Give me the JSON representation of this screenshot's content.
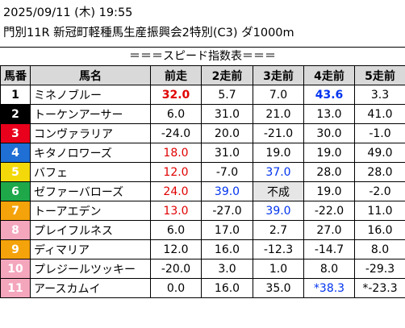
{
  "header": {
    "line1": "2025/09/11 (木) 19:55",
    "line2": "門別11R 新冠町軽種馬生産振興会2特別(C3) ダ1000m"
  },
  "banner": "＝＝＝スピード指数表＝＝＝",
  "columns": [
    "馬番",
    "馬名",
    "前走",
    "2走前",
    "3走前",
    "4走前",
    "5走前"
  ],
  "rows": [
    {
      "no": "1",
      "name": "ミネノブルー",
      "v": [
        "32.0",
        "5.7",
        "7.0",
        "43.6",
        "3.3"
      ]
    },
    {
      "no": "2",
      "name": "トーケンアーサー",
      "v": [
        "6.0",
        "31.0",
        "21.0",
        "13.0",
        "41.0"
      ]
    },
    {
      "no": "3",
      "name": "コンヴァラリア",
      "v": [
        "-24.0",
        "20.0",
        "-21.0",
        "30.0",
        "-1.0"
      ]
    },
    {
      "no": "4",
      "name": "キタノロワーズ",
      "v": [
        "18.0",
        "31.0",
        "19.0",
        "19.0",
        "49.0"
      ]
    },
    {
      "no": "5",
      "name": "バフェ",
      "v": [
        "12.0",
        "-7.0",
        "37.0",
        "28.0",
        "28.0"
      ]
    },
    {
      "no": "6",
      "name": "ゼファーバローズ",
      "v": [
        "24.0",
        "39.0",
        "不成",
        "19.0",
        "-2.0"
      ]
    },
    {
      "no": "7",
      "name": "トーアエデン",
      "v": [
        "13.0",
        "-27.0",
        "39.0",
        "-22.0",
        "11.0"
      ]
    },
    {
      "no": "8",
      "name": "プレイフルネス",
      "v": [
        "6.0",
        "17.0",
        "2.7",
        "27.0",
        "16.0"
      ]
    },
    {
      "no": "9",
      "name": "ディマリア",
      "v": [
        "12.0",
        "16.0",
        "-12.3",
        "-14.7",
        "8.0"
      ]
    },
    {
      "no": "10",
      "name": "プレジールツッキー",
      "v": [
        "-20.0",
        "3.0",
        "1.0",
        "8.0",
        "-29.3"
      ]
    },
    {
      "no": "11",
      "name": "アースカムイ",
      "v": [
        "0.0",
        "16.0",
        "35.0",
        "*38.3",
        "*-23.3"
      ]
    }
  ],
  "colors": {
    "waku": {
      "1": [
        "#ffffff",
        "#000000"
      ],
      "2": [
        "#000000",
        "#ffffff"
      ],
      "3": [
        "#e8001c",
        "#ffffff"
      ],
      "4": [
        "#1f6fd4",
        "#ffffff"
      ],
      "5": [
        "#f4d90a",
        "#ffffff"
      ],
      "6": [
        "#1ea84a",
        "#ffffff"
      ],
      "7": [
        "#f5a30a",
        "#ffffff"
      ],
      "8": [
        "#f4a6bd",
        "#ffffff"
      ],
      "9": [
        "#f5a30a",
        "#ffffff"
      ],
      "10": [
        "#f4a6bd",
        "#ffffff"
      ],
      "11": [
        "#f4a6bd",
        "#ffffff"
      ]
    },
    "cells": {
      "0-0": "red bold",
      "0-3": "blue bold",
      "3-0": "red",
      "4-0": "red",
      "4-2": "blue",
      "5-0": "red",
      "5-1": "blue",
      "5-2": "gray",
      "6-0": "red",
      "6-2": "blue",
      "10-3": "blue"
    }
  }
}
